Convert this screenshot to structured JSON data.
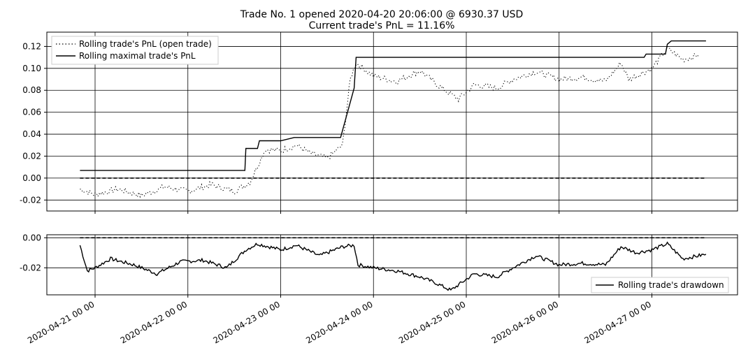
{
  "title": {
    "line1": "Trade No. 1 opened 2020-04-20 20:06:00 @ 6930.37 USD",
    "line2": "Current trade's PnL = 11.16%"
  },
  "chart_data": [
    {
      "type": "line",
      "panel": "pnl",
      "x_unit": "date",
      "ylim": [
        -0.03,
        0.133
      ],
      "yticks": [
        -0.02,
        0.0,
        0.02,
        0.04,
        0.06,
        0.08,
        0.1,
        0.12
      ],
      "ytick_labels": [
        "-0.02",
        "0.00",
        "0.02",
        "0.04",
        "0.06",
        "0.08",
        "0.10",
        "0.12"
      ],
      "grid": true,
      "legend_position": "top-left",
      "series": [
        {
          "name": "Rolling trade's PnL (open trade)",
          "style": "dotted",
          "color": "#000000",
          "points": [
            [
              "2020-04-20 20:06",
              -0.01
            ],
            [
              "2020-04-21 00:00",
              -0.015
            ],
            [
              "2020-04-21 06:00",
              -0.01
            ],
            [
              "2020-04-21 12:00",
              -0.016
            ],
            [
              "2020-04-21 18:00",
              -0.008
            ],
            [
              "2020-04-22 00:00",
              -0.012
            ],
            [
              "2020-04-22 06:00",
              -0.006
            ],
            [
              "2020-04-22 12:00",
              -0.012
            ],
            [
              "2020-04-22 16:00",
              -0.004
            ],
            [
              "2020-04-22 20:00",
              0.026
            ],
            [
              "2020-04-23 00:00",
              0.025
            ],
            [
              "2020-04-23 04:00",
              0.03
            ],
            [
              "2020-04-23 08:00",
              0.022
            ],
            [
              "2020-04-23 12:00",
              0.018
            ],
            [
              "2020-04-23 16:00",
              0.03
            ],
            [
              "2020-04-23 18:00",
              0.09
            ],
            [
              "2020-04-23 19:30",
              0.105
            ],
            [
              "2020-04-24 00:00",
              0.093
            ],
            [
              "2020-04-24 06:00",
              0.088
            ],
            [
              "2020-04-24 12:00",
              0.098
            ],
            [
              "2020-04-24 18:00",
              0.081
            ],
            [
              "2020-04-24 22:00",
              0.072
            ],
            [
              "2020-04-25 02:00",
              0.085
            ],
            [
              "2020-04-25 08:00",
              0.082
            ],
            [
              "2020-04-25 12:00",
              0.09
            ],
            [
              "2020-04-25 18:00",
              0.097
            ],
            [
              "2020-04-26 00:00",
              0.09
            ],
            [
              "2020-04-26 06:00",
              0.092
            ],
            [
              "2020-04-26 12:00",
              0.088
            ],
            [
              "2020-04-26 16:00",
              0.105
            ],
            [
              "2020-04-26 18:00",
              0.09
            ],
            [
              "2020-04-27 00:00",
              0.1
            ],
            [
              "2020-04-27 04:00",
              0.118
            ],
            [
              "2020-04-27 08:00",
              0.108
            ],
            [
              "2020-04-27 12:00",
              0.112
            ]
          ]
        },
        {
          "name": "Rolling maximal trade's PnL",
          "style": "solid",
          "color": "#000000",
          "points": [
            [
              "2020-04-20 20:06",
              0.007
            ],
            [
              "2020-04-22 14:45",
              0.007
            ],
            [
              "2020-04-22 15:00",
              0.027
            ],
            [
              "2020-04-22 18:00",
              0.027
            ],
            [
              "2020-04-22 18:30",
              0.034
            ],
            [
              "2020-04-23 00:00",
              0.034
            ],
            [
              "2020-04-23 03:30",
              0.037
            ],
            [
              "2020-04-23 15:30",
              0.037
            ],
            [
              "2020-04-23 19:00",
              0.082
            ],
            [
              "2020-04-23 19:30",
              0.11
            ],
            [
              "2020-04-26 22:00",
              0.11
            ],
            [
              "2020-04-26 22:30",
              0.113
            ],
            [
              "2020-04-27 03:30",
              0.113
            ],
            [
              "2020-04-27 04:00",
              0.122
            ],
            [
              "2020-04-27 05:00",
              0.125
            ],
            [
              "2020-04-27 14:00",
              0.125
            ]
          ]
        },
        {
          "name": "",
          "style": "dashed",
          "color": "#000000",
          "points": [
            [
              "2020-04-20 20:06",
              0.0
            ],
            [
              "2020-04-27 14:00",
              0.0
            ]
          ]
        }
      ]
    },
    {
      "type": "line",
      "panel": "drawdown",
      "x_unit": "date",
      "ylim": [
        -0.038,
        0.002
      ],
      "yticks": [
        -0.02,
        0.0
      ],
      "ytick_labels": [
        "-0.02",
        "0.00"
      ],
      "grid": true,
      "legend_position": "bottom-right",
      "xticks": [
        "2020-04-21 00:00",
        "2020-04-22 00:00",
        "2020-04-23 00:00",
        "2020-04-24 00:00",
        "2020-04-25 00:00",
        "2020-04-26 00:00",
        "2020-04-27 00:00"
      ],
      "xtick_labels": [
        "2020-04-21 00 00",
        "2020-04-22 00 00",
        "2020-04-23 00 00",
        "2020-04-24 00 00",
        "2020-04-25 00 00",
        "2020-04-26 00 00",
        "2020-04-27 00 00"
      ],
      "series": [
        {
          "name": "Rolling trade's drawdown",
          "style": "solid",
          "color": "#000000",
          "points": [
            [
              "2020-04-20 20:06",
              -0.005
            ],
            [
              "2020-04-20 22:00",
              -0.022
            ],
            [
              "2020-04-21 00:00",
              -0.02
            ],
            [
              "2020-04-21 04:00",
              -0.014
            ],
            [
              "2020-04-21 10:00",
              -0.018
            ],
            [
              "2020-04-21 16:00",
              -0.024
            ],
            [
              "2020-04-21 22:00",
              -0.016
            ],
            [
              "2020-04-22 04:00",
              -0.015
            ],
            [
              "2020-04-22 10:00",
              -0.02
            ],
            [
              "2020-04-22 15:00",
              -0.008
            ],
            [
              "2020-04-22 18:00",
              -0.004
            ],
            [
              "2020-04-23 00:00",
              -0.008
            ],
            [
              "2020-04-23 04:00",
              -0.005
            ],
            [
              "2020-04-23 10:00",
              -0.012
            ],
            [
              "2020-04-23 16:00",
              -0.006
            ],
            [
              "2020-04-23 19:00",
              -0.005
            ],
            [
              "2020-04-23 20:00",
              -0.018
            ],
            [
              "2020-04-24 00:00",
              -0.02
            ],
            [
              "2020-04-24 06:00",
              -0.022
            ],
            [
              "2020-04-24 12:00",
              -0.026
            ],
            [
              "2020-04-24 16:00",
              -0.03
            ],
            [
              "2020-04-24 20:00",
              -0.035
            ],
            [
              "2020-04-25 02:00",
              -0.024
            ],
            [
              "2020-04-25 08:00",
              -0.026
            ],
            [
              "2020-04-25 12:00",
              -0.02
            ],
            [
              "2020-04-25 18:00",
              -0.012
            ],
            [
              "2020-04-26 00:00",
              -0.018
            ],
            [
              "2020-04-26 06:00",
              -0.017
            ],
            [
              "2020-04-26 12:00",
              -0.018
            ],
            [
              "2020-04-26 16:00",
              -0.006
            ],
            [
              "2020-04-26 20:00",
              -0.01
            ],
            [
              "2020-04-27 00:00",
              -0.008
            ],
            [
              "2020-04-27 04:00",
              -0.004
            ],
            [
              "2020-04-27 08:00",
              -0.014
            ],
            [
              "2020-04-27 14:00",
              -0.011
            ]
          ]
        },
        {
          "name": "",
          "style": "dashed",
          "color": "#000000",
          "points": [
            [
              "2020-04-20 20:06",
              0.0
            ],
            [
              "2020-04-27 14:00",
              0.0
            ]
          ]
        }
      ]
    }
  ]
}
